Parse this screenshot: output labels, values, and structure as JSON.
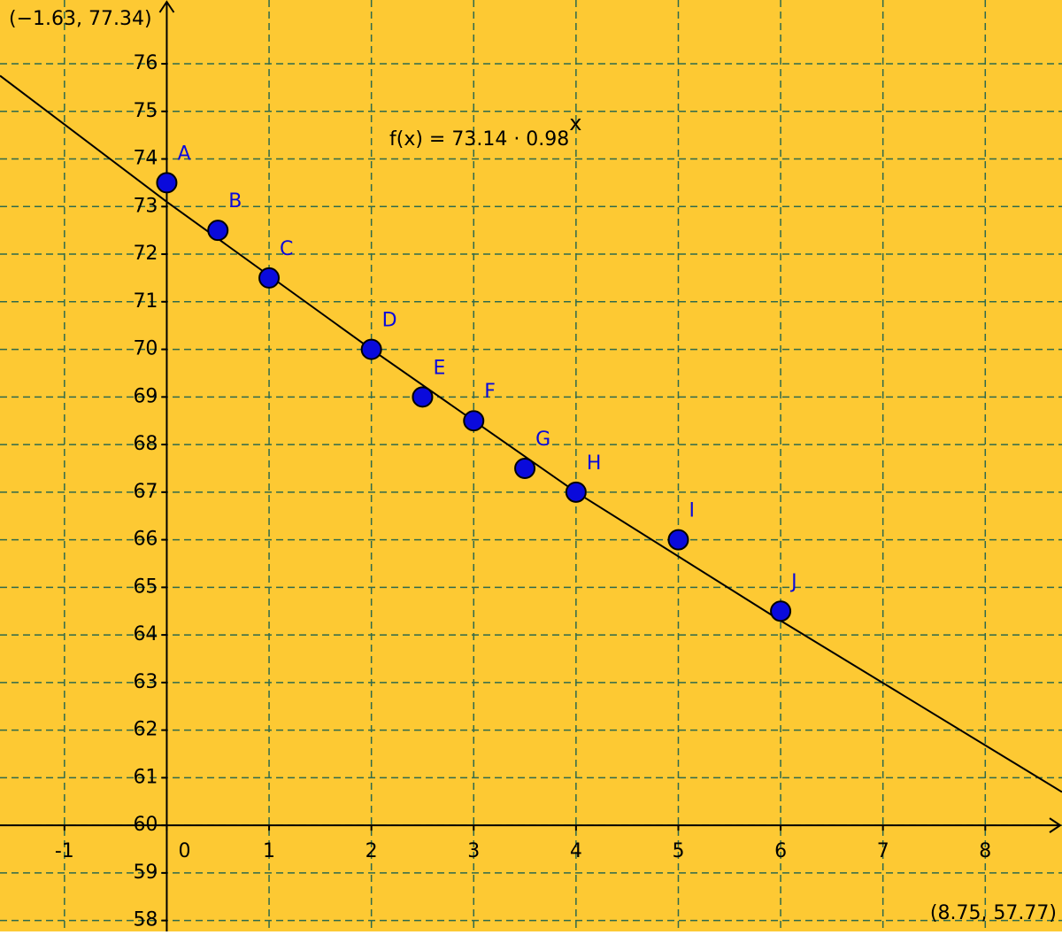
{
  "chart_data": {
    "type": "scatter",
    "xlim": [
      -1.63,
      8.75
    ],
    "ylim": [
      57.77,
      77.34
    ],
    "corner_labels": [
      "(−1.63, 77.34)",
      "(8.75, 57.77)"
    ],
    "xticks": [
      -1,
      0,
      1,
      2,
      3,
      4,
      5,
      6,
      7,
      8
    ],
    "yticks": [
      58,
      59,
      60,
      61,
      62,
      63,
      64,
      65,
      66,
      67,
      68,
      69,
      70,
      71,
      72,
      73,
      74,
      75,
      76
    ],
    "x_axis_at": 60,
    "grid": true,
    "background": "#fdc933",
    "color": "#0a0adc",
    "point_labels": [
      "A",
      "B",
      "C",
      "D",
      "E",
      "F",
      "G",
      "H",
      "I",
      "J"
    ],
    "x": [
      0,
      0.5,
      1,
      2,
      2.5,
      3,
      3.5,
      4,
      5,
      6
    ],
    "values": [
      73.5,
      72.5,
      71.5,
      70,
      69,
      68.5,
      67.5,
      67,
      66,
      64.5
    ],
    "formula": "f(x) = 73.14 · 0.98",
    "formula_exponent": "x",
    "curve": {
      "x": [
        -1.63,
        0,
        2,
        4,
        6,
        8.75
      ],
      "values": [
        75.75,
        73.1,
        70.0,
        67.0,
        64.3,
        60.7
      ]
    }
  }
}
